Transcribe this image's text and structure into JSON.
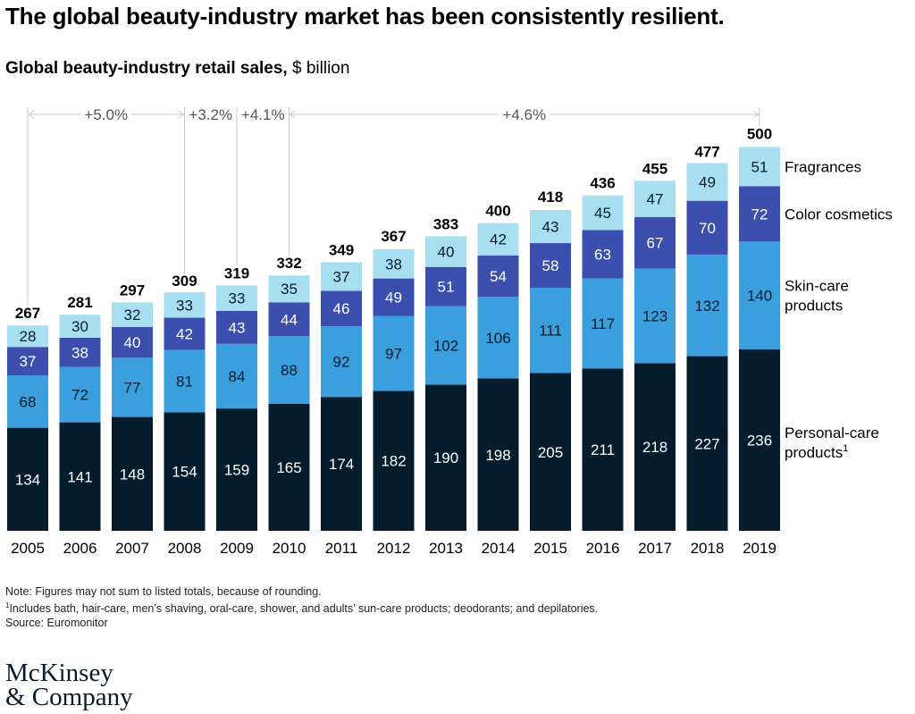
{
  "title": "The global beauty-industry market has been consistently resilient.",
  "subtitle": {
    "bold": "Global beauty-industry retail sales,",
    "unit": " $ billion"
  },
  "chart_data": {
    "type": "bar",
    "stacked": true,
    "categories": [
      "2005",
      "2006",
      "2007",
      "2008",
      "2009",
      "2010",
      "2011",
      "2012",
      "2013",
      "2014",
      "2015",
      "2016",
      "2017",
      "2018",
      "2019"
    ],
    "series": [
      {
        "name": "Personal-care products",
        "footnote": "1",
        "color": "#051c2c",
        "label_color": "#ffffff",
        "values": [
          134,
          141,
          148,
          154,
          159,
          165,
          174,
          182,
          190,
          198,
          205,
          211,
          218,
          227,
          236
        ]
      },
      {
        "name": "Skin-care products",
        "color": "#3a9fdc",
        "label_color": "#051c2c",
        "values": [
          68,
          72,
          77,
          81,
          84,
          88,
          92,
          97,
          102,
          106,
          111,
          117,
          123,
          132,
          140
        ]
      },
      {
        "name": "Color cosmetics",
        "color": "#3d4fae",
        "label_color": "#ffffff",
        "values": [
          37,
          38,
          40,
          42,
          43,
          44,
          46,
          49,
          51,
          54,
          58,
          63,
          67,
          70,
          72
        ]
      },
      {
        "name": "Fragrances",
        "color": "#a8dff0",
        "label_color": "#051c2c",
        "values": [
          28,
          30,
          32,
          33,
          33,
          35,
          37,
          38,
          40,
          42,
          43,
          45,
          47,
          49,
          51
        ]
      }
    ],
    "totals": [
      267,
      281,
      297,
      309,
      319,
      332,
      349,
      367,
      383,
      400,
      418,
      436,
      455,
      477,
      500
    ],
    "growth_annotations": [
      {
        "label": "+5.0%",
        "from": "2005",
        "to": "2008"
      },
      {
        "label": "+3.2%",
        "from": "2008",
        "to": "2009"
      },
      {
        "label": "+4.1%",
        "from": "2009",
        "to": "2010"
      },
      {
        "label": "+4.6%",
        "from": "2010",
        "to": "2019"
      }
    ],
    "ylim": [
      0,
      500
    ],
    "legend_position": "right"
  },
  "notes": {
    "note": "Note: Figures may not sum to listed totals, because of rounding.",
    "footnote_mark": "1",
    "footnote": "Includes bath, hair-care, men’s shaving, oral-care, shower, and adults’ sun-care products; deodorants; and depilatories.",
    "source": "Source: Euromonitor"
  },
  "logo": {
    "line1": "McKinsey",
    "line2": "& Company"
  },
  "colors": {
    "ink": "#051c2c",
    "guide": "#c8c8c8",
    "annotation_text": "#555555"
  }
}
